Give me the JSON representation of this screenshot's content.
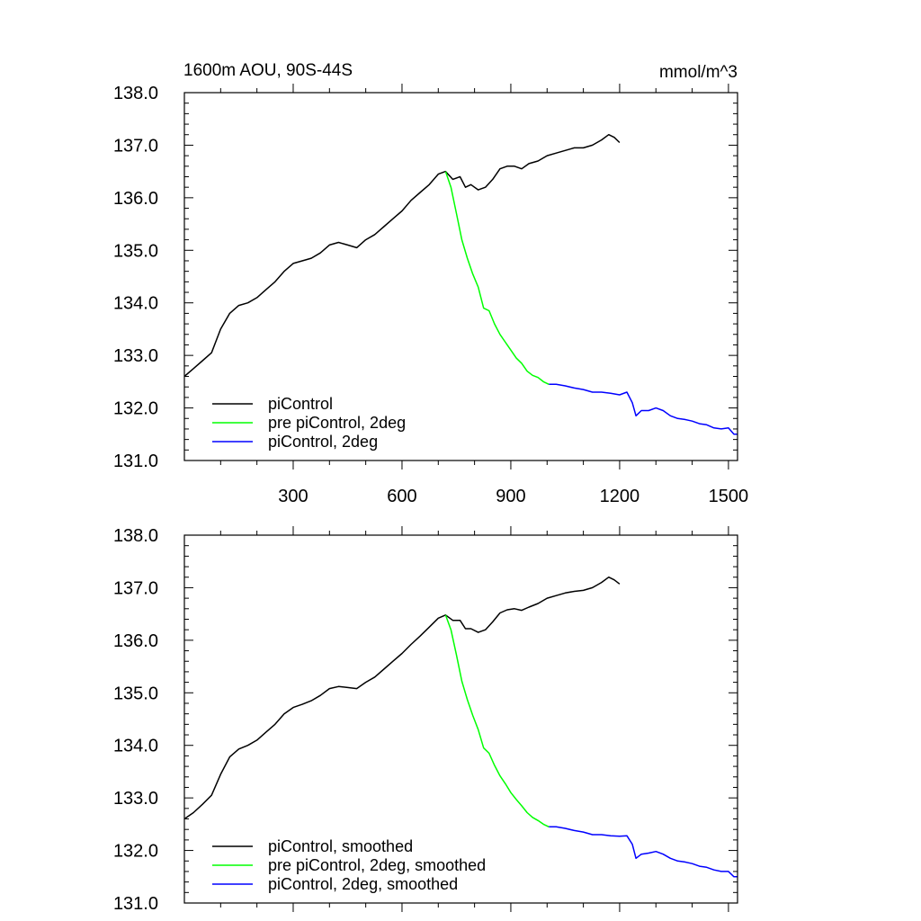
{
  "chart_data": [
    {
      "type": "line",
      "title": "1600m AOU, 90S-44S",
      "units": "mmol/m^3",
      "xlim": [
        0,
        1525
      ],
      "ylim": [
        131.0,
        138.0
      ],
      "x_ticks": [
        300,
        600,
        900,
        1200,
        1500
      ],
      "x_tick_labels": [
        "300",
        "600",
        "900",
        "1200",
        "1500"
      ],
      "y_ticks": [
        131.0,
        132.0,
        133.0,
        134.0,
        135.0,
        136.0,
        137.0,
        138.0
      ],
      "y_tick_labels": [
        "131.0",
        "132.0",
        "133.0",
        "134.0",
        "135.0",
        "136.0",
        "137.0",
        "138.0"
      ],
      "legend_position": "bottom-left",
      "series": [
        {
          "name": "piControl",
          "color": "#000000",
          "x": [
            0,
            25,
            50,
            75,
            100,
            125,
            150,
            175,
            200,
            225,
            250,
            275,
            300,
            325,
            350,
            375,
            400,
            425,
            450,
            475,
            500,
            525,
            550,
            575,
            600,
            625,
            650,
            675,
            700,
            720,
            740,
            760,
            775,
            790,
            810,
            830,
            850,
            870,
            890,
            910,
            930,
            950,
            975,
            1000,
            1025,
            1050,
            1075,
            1100,
            1125,
            1150,
            1170,
            1185,
            1200
          ],
          "y": [
            132.6,
            132.75,
            132.9,
            133.05,
            133.5,
            133.8,
            133.95,
            134.0,
            134.1,
            134.25,
            134.4,
            134.6,
            134.75,
            134.8,
            134.85,
            134.95,
            135.1,
            135.15,
            135.1,
            135.05,
            135.2,
            135.3,
            135.45,
            135.6,
            135.75,
            135.95,
            136.1,
            136.25,
            136.45,
            136.5,
            136.35,
            136.4,
            136.2,
            136.25,
            136.15,
            136.2,
            136.35,
            136.55,
            136.6,
            136.6,
            136.55,
            136.65,
            136.7,
            136.8,
            136.85,
            136.9,
            136.95,
            136.95,
            137.0,
            137.1,
            137.2,
            137.15,
            137.05
          ]
        },
        {
          "name": "pre piControl, 2deg",
          "color": "#00ff00",
          "x": [
            720,
            735,
            750,
            765,
            780,
            795,
            810,
            825,
            840,
            855,
            870,
            885,
            900,
            915,
            930,
            945,
            960,
            975,
            990,
            1005
          ],
          "y": [
            136.5,
            136.2,
            135.7,
            135.2,
            134.85,
            134.55,
            134.3,
            133.9,
            133.85,
            133.6,
            133.4,
            133.25,
            133.1,
            132.95,
            132.85,
            132.7,
            132.62,
            132.58,
            132.5,
            132.45
          ]
        },
        {
          "name": "piControl, 2deg",
          "color": "#0000ff",
          "x": [
            1005,
            1025,
            1050,
            1075,
            1100,
            1125,
            1150,
            1175,
            1200,
            1220,
            1235,
            1245,
            1260,
            1280,
            1300,
            1320,
            1340,
            1360,
            1380,
            1400,
            1420,
            1440,
            1460,
            1480,
            1500,
            1515,
            1525
          ],
          "y": [
            132.45,
            132.45,
            132.42,
            132.38,
            132.35,
            132.3,
            132.3,
            132.28,
            132.25,
            132.3,
            132.1,
            131.85,
            131.95,
            131.95,
            132.0,
            131.95,
            131.85,
            131.8,
            131.78,
            131.75,
            131.7,
            131.68,
            131.62,
            131.6,
            131.62,
            131.5,
            131.5
          ]
        }
      ]
    },
    {
      "type": "line",
      "xlim": [
        0,
        1525
      ],
      "ylim": [
        131.0,
        138.0
      ],
      "x_ticks": [
        300,
        600,
        900,
        1200,
        1500
      ],
      "y_ticks": [
        131.0,
        132.0,
        133.0,
        134.0,
        135.0,
        136.0,
        137.0,
        138.0
      ],
      "y_tick_labels": [
        "131.0",
        "132.0",
        "133.0",
        "134.0",
        "135.0",
        "136.0",
        "137.0",
        "138.0"
      ],
      "legend_position": "bottom-left",
      "series": [
        {
          "name": "piControl, smoothed",
          "color": "#000000",
          "x": [
            0,
            25,
            50,
            75,
            100,
            125,
            150,
            175,
            200,
            225,
            250,
            275,
            300,
            325,
            350,
            375,
            400,
            425,
            450,
            475,
            500,
            525,
            550,
            575,
            600,
            625,
            650,
            675,
            700,
            720,
            740,
            760,
            775,
            790,
            810,
            830,
            850,
            870,
            890,
            910,
            930,
            950,
            975,
            1000,
            1025,
            1050,
            1075,
            1100,
            1125,
            1150,
            1170,
            1185,
            1200
          ],
          "y": [
            132.6,
            132.72,
            132.88,
            133.05,
            133.45,
            133.78,
            133.93,
            134.0,
            134.1,
            134.25,
            134.4,
            134.6,
            134.72,
            134.78,
            134.85,
            134.95,
            135.08,
            135.12,
            135.1,
            135.08,
            135.2,
            135.3,
            135.45,
            135.6,
            135.75,
            135.92,
            136.08,
            136.25,
            136.42,
            136.48,
            136.38,
            136.38,
            136.22,
            136.22,
            136.15,
            136.2,
            136.35,
            136.52,
            136.58,
            136.6,
            136.57,
            136.63,
            136.7,
            136.8,
            136.85,
            136.9,
            136.93,
            136.95,
            137.0,
            137.1,
            137.2,
            137.15,
            137.07
          ]
        },
        {
          "name": "pre piControl, 2deg, smoothed",
          "color": "#00ff00",
          "x": [
            720,
            735,
            750,
            765,
            780,
            795,
            810,
            825,
            840,
            855,
            870,
            885,
            900,
            915,
            930,
            945,
            960,
            975,
            990,
            1005
          ],
          "y": [
            136.48,
            136.2,
            135.72,
            135.22,
            134.87,
            134.57,
            134.3,
            133.95,
            133.85,
            133.62,
            133.42,
            133.27,
            133.1,
            132.97,
            132.85,
            132.72,
            132.63,
            132.57,
            132.5,
            132.45
          ]
        },
        {
          "name": "piControl, 2deg, smoothed",
          "color": "#0000ff",
          "x": [
            1005,
            1025,
            1050,
            1075,
            1100,
            1125,
            1150,
            1175,
            1200,
            1220,
            1235,
            1245,
            1260,
            1280,
            1300,
            1320,
            1340,
            1360,
            1380,
            1400,
            1420,
            1440,
            1460,
            1480,
            1500,
            1515,
            1525
          ],
          "y": [
            132.45,
            132.45,
            132.42,
            132.38,
            132.35,
            132.3,
            132.3,
            132.28,
            132.27,
            132.28,
            132.12,
            131.85,
            131.93,
            131.95,
            131.98,
            131.93,
            131.85,
            131.8,
            131.78,
            131.75,
            131.7,
            131.68,
            131.63,
            131.6,
            131.6,
            131.5,
            131.5
          ]
        }
      ]
    }
  ]
}
